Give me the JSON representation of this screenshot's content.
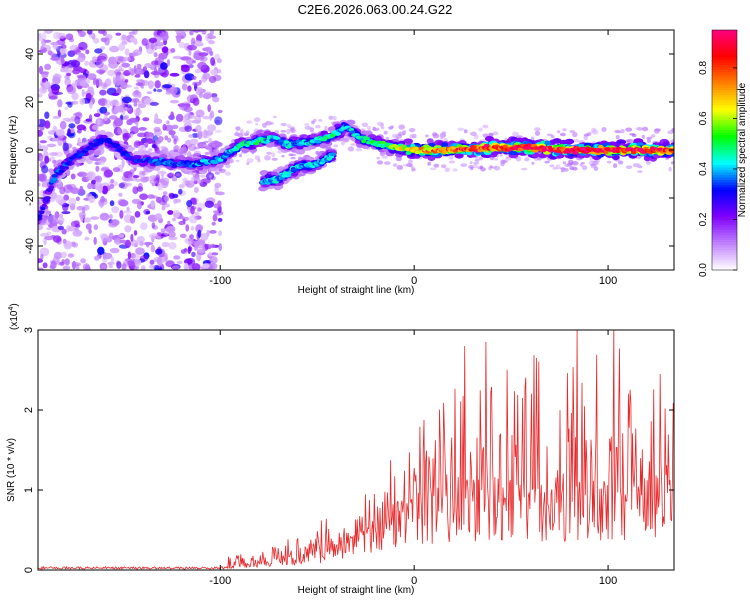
{
  "title": "C2E6.2026.063.00.24.G22",
  "chart_data": [
    {
      "type": "heatmap",
      "title": "C2E6.2026.063.00.24.G22",
      "xlabel": "Height of straight line (km)",
      "ylabel": "Frequency (Hz)",
      "xlim": [
        -194,
        134
      ],
      "ylim": [
        -50,
        50
      ],
      "x_ticks": [
        -100,
        0,
        100
      ],
      "y_ticks": [
        -40,
        -20,
        0,
        20,
        40
      ],
      "x_tick_labels": [
        "-100",
        "0",
        "100"
      ],
      "y_tick_labels": [
        "-40",
        "-20",
        "0",
        "20",
        "40"
      ],
      "colorbar": {
        "label": "Normalized spectral amplitude",
        "range": [
          0,
          0.95
        ],
        "ticks": [
          0.0,
          0.2,
          0.4,
          0.6,
          0.8
        ],
        "tick_labels": [
          "0.0",
          "0.2",
          "0.4",
          "0.6",
          "0.8"
        ],
        "colors": [
          "#ffffff",
          "#c080ff",
          "#8000ff",
          "#0000ff",
          "#00ffff",
          "#00ff00",
          "#ffff00",
          "#ff8000",
          "#ff0000",
          "#ff0080"
        ]
      },
      "noise_region_x": [
        -194,
        -100
      ],
      "ridge": {
        "x": [
          -194,
          -185,
          -175,
          -160,
          -145,
          -130,
          -115,
          -100,
          -90,
          -80,
          -72,
          -65,
          -58,
          -50,
          -42,
          -35,
          -28,
          -20,
          -10,
          0,
          20,
          40,
          60,
          80,
          100,
          120,
          134
        ],
        "y": [
          -30,
          -10,
          -3,
          5,
          -4,
          -5,
          -6,
          -4,
          2,
          4,
          5,
          2,
          3,
          4,
          6,
          10,
          5,
          3,
          1,
          0,
          0,
          1,
          1,
          0,
          0,
          0,
          0
        ],
        "amp": [
          0.25,
          0.35,
          0.3,
          0.3,
          0.3,
          0.35,
          0.35,
          0.4,
          0.45,
          0.45,
          0.4,
          0.4,
          0.4,
          0.45,
          0.45,
          0.4,
          0.45,
          0.5,
          0.55,
          0.7,
          0.8,
          0.85,
          0.9,
          0.9,
          0.9,
          0.9,
          0.85
        ]
      },
      "secondary_ridge": {
        "x": [
          -78,
          -70,
          -60,
          -50,
          -42
        ],
        "y": [
          -13,
          -12,
          -7,
          -6,
          -2
        ],
        "amp": 0.4
      }
    },
    {
      "type": "line",
      "xlabel": "Height of straight line (km)",
      "ylabel": "SNR (10 * v/v)",
      "multiplier_label": "(x10",
      "multiplier_exp": "4",
      "multiplier_close": ")",
      "xlim": [
        -194,
        134
      ],
      "ylim": [
        0,
        3
      ],
      "x_ticks": [
        -100,
        0,
        100
      ],
      "y_ticks": [
        0,
        1,
        2,
        3
      ],
      "x_tick_labels": [
        "-100",
        "0",
        "100"
      ],
      "y_tick_labels": [
        "0",
        "1",
        "2",
        "3"
      ],
      "color": "#e8282a",
      "envelope": {
        "x": [
          -194,
          -100,
          -95,
          -80,
          -60,
          -40,
          -30,
          -15,
          -5,
          10,
          25,
          40,
          60,
          80,
          100,
          120,
          134
        ],
        "base": [
          0.01,
          0.02,
          0.04,
          0.08,
          0.15,
          0.25,
          0.35,
          0.5,
          0.7,
          0.8,
          0.85,
          0.9,
          0.9,
          0.85,
          0.9,
          0.9,
          0.9
        ],
        "peak": [
          0.04,
          0.04,
          0.2,
          0.3,
          0.5,
          0.7,
          0.9,
          1.3,
          1.8,
          2.0,
          2.4,
          2.6,
          2.7,
          2.8,
          2.9,
          2.6,
          2.1
        ]
      },
      "highlights": [
        {
          "x": 26,
          "y": 2.8
        },
        {
          "x": 37,
          "y": 2.85
        },
        {
          "x": 84,
          "y": 3.0
        },
        {
          "x": 103,
          "y": 3.05
        },
        {
          "x": 63,
          "y": 2.65
        },
        {
          "x": 127,
          "y": 2.45
        }
      ]
    }
  ]
}
